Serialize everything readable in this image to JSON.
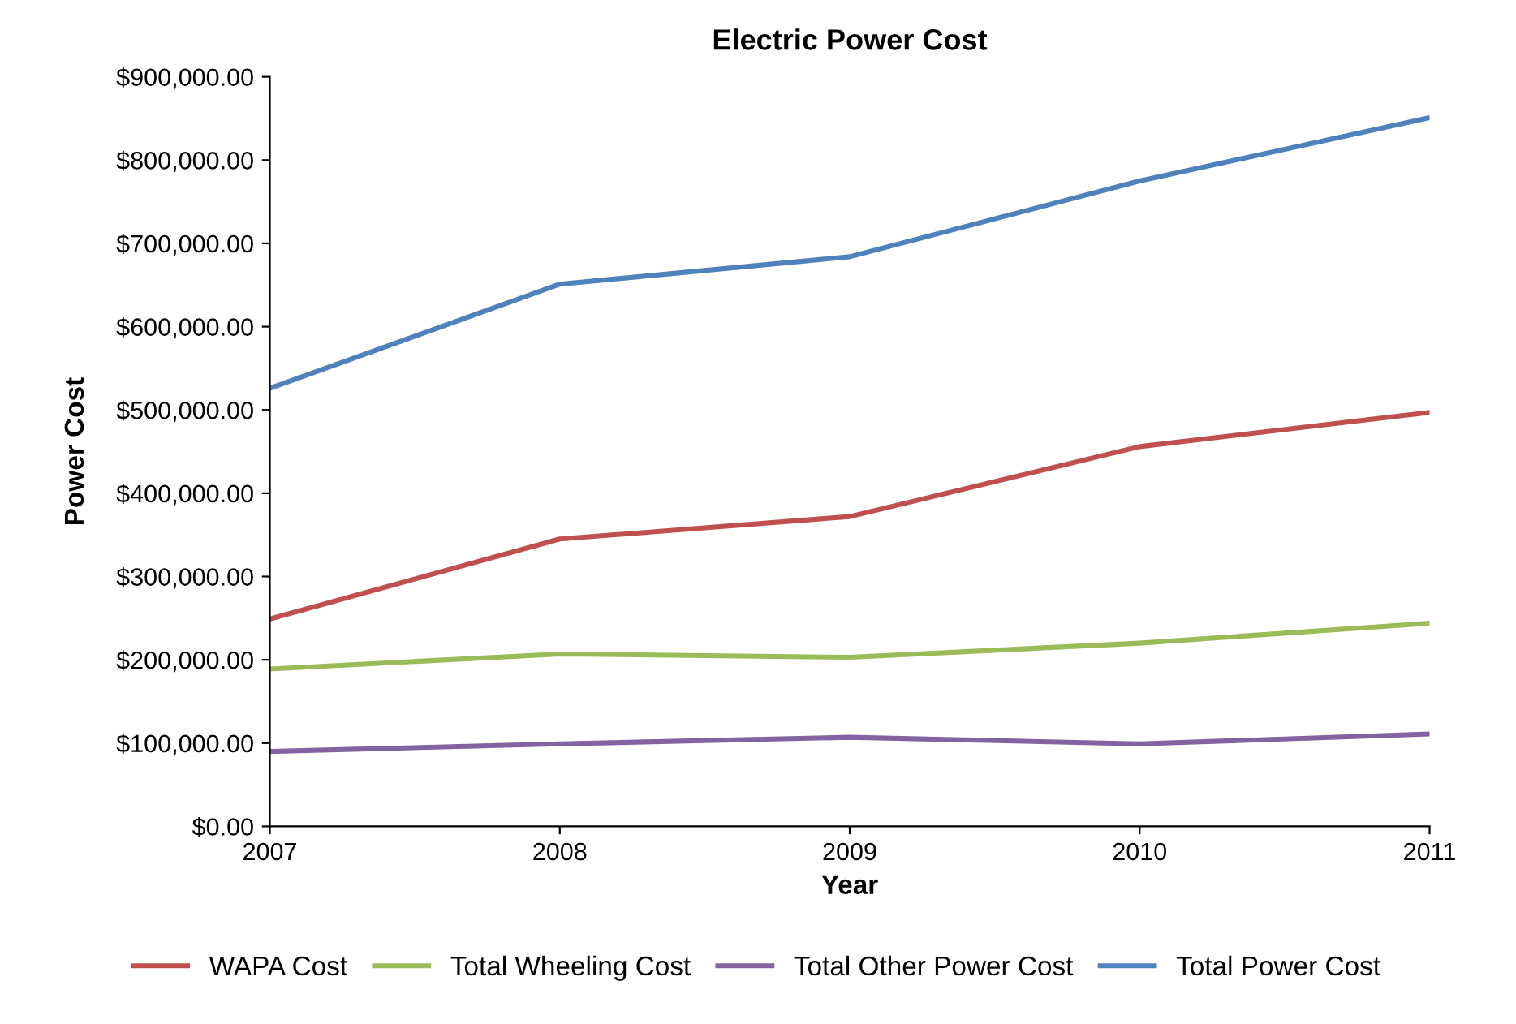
{
  "chart_data": {
    "type": "line",
    "title": "Electric Power Cost",
    "xlabel": "Year",
    "ylabel": "Power Cost",
    "x": [
      2007,
      2008,
      2009,
      2010,
      2011
    ],
    "series": [
      {
        "name": "WAPA Cost",
        "color": "#c0504d",
        "values": [
          249000,
          345000,
          372000,
          456000,
          497000
        ]
      },
      {
        "name": "Total Wheeling Cost",
        "color": "#9bbb59",
        "values": [
          189000,
          207000,
          203000,
          220000,
          244000
        ]
      },
      {
        "name": "Total Other Power Cost",
        "color": "#8064a2",
        "values": [
          90000,
          99000,
          107000,
          99000,
          111000
        ]
      },
      {
        "name": "Total Power Cost",
        "color": "#4f81bd",
        "values": [
          526000,
          651000,
          684000,
          775000,
          851000
        ]
      }
    ],
    "xlim": [
      2007,
      2011
    ],
    "xticks": [
      2007,
      2008,
      2009,
      2010,
      2011
    ],
    "ylim": [
      0,
      900000
    ],
    "yticks": [
      {
        "value": 0,
        "label": "$0.00"
      },
      {
        "value": 100000,
        "label": "$100,000.00"
      },
      {
        "value": 200000,
        "label": "$200,000.00"
      },
      {
        "value": 300000,
        "label": "$300,000.00"
      },
      {
        "value": 400000,
        "label": "$400,000.00"
      },
      {
        "value": 500000,
        "label": "$500,000.00"
      },
      {
        "value": 600000,
        "label": "$600,000.00"
      },
      {
        "value": 700000,
        "label": "$700,000.00"
      },
      {
        "value": 800000,
        "label": "$800,000.00"
      },
      {
        "value": 900000,
        "label": "$900,000.00"
      }
    ],
    "legend": "bottom",
    "grid": false,
    "marker": "none",
    "line_style": "solid"
  }
}
